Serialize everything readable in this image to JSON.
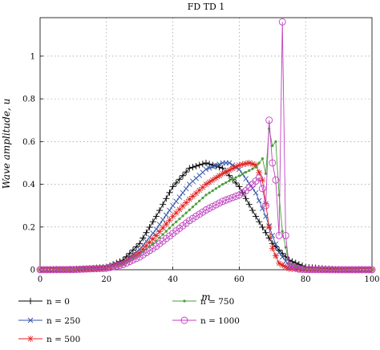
{
  "chart_data": {
    "type": "line",
    "title": "FD TD 1",
    "xlabel": "m",
    "ylabel": "Wave amplitude, u",
    "xlim": [
      0,
      100
    ],
    "ylim": [
      0,
      1.18
    ],
    "x_ticks": [
      "0",
      "20",
      "40",
      "60",
      "80",
      "100"
    ],
    "y_ticks": [
      "0",
      "0.2",
      "0.4",
      "0.6",
      "0.8",
      "1"
    ],
    "grid": "dotted",
    "legend_position": "bottom",
    "series": [
      {
        "name": "n = 0",
        "color": "#000000",
        "marker": "plus",
        "x": [
          0,
          10,
          20,
          25,
          30,
          35,
          40,
          45,
          50,
          55,
          60,
          65,
          70,
          75,
          80,
          90,
          100
        ],
        "y": [
          0,
          0.001,
          0.012,
          0.045,
          0.123,
          0.25,
          0.389,
          0.475,
          0.5,
          0.475,
          0.389,
          0.25,
          0.123,
          0.045,
          0.012,
          0.001,
          0
        ]
      },
      {
        "name": "n = 250",
        "color": "#3355aa",
        "marker": "x",
        "x": [
          0,
          10,
          20,
          25,
          30,
          35,
          40,
          45,
          50,
          55,
          57,
          60,
          65,
          68,
          70,
          72,
          75,
          80,
          90,
          100
        ],
        "y": [
          0,
          0.001,
          0.01,
          0.035,
          0.095,
          0.19,
          0.3,
          0.4,
          0.47,
          0.5,
          0.5,
          0.47,
          0.36,
          0.25,
          0.16,
          0.08,
          0.02,
          0.002,
          0,
          0
        ]
      },
      {
        "name": "n = 500",
        "color": "#e02020",
        "marker": "star",
        "x": [
          0,
          10,
          20,
          25,
          30,
          35,
          40,
          45,
          50,
          55,
          60,
          63,
          65,
          67,
          69,
          70,
          72,
          75,
          80,
          90,
          100
        ],
        "y": [
          0,
          0.001,
          0.009,
          0.03,
          0.08,
          0.16,
          0.25,
          0.33,
          0.4,
          0.45,
          0.49,
          0.5,
          0.49,
          0.42,
          0.2,
          0.1,
          0.03,
          0.005,
          0.001,
          0,
          0
        ]
      },
      {
        "name": "n = 750",
        "color": "#4a9e3a",
        "marker": "dot",
        "x": [
          0,
          10,
          20,
          25,
          30,
          35,
          40,
          45,
          50,
          55,
          60,
          65,
          67,
          68,
          69,
          70,
          71,
          72,
          73,
          75,
          80,
          90,
          100
        ],
        "y": [
          0,
          0.001,
          0.008,
          0.027,
          0.07,
          0.135,
          0.21,
          0.28,
          0.35,
          0.4,
          0.44,
          0.48,
          0.52,
          0.45,
          0.66,
          0.58,
          0.6,
          0.35,
          0.18,
          0.03,
          0.002,
          0,
          0
        ]
      },
      {
        "name": "n = 1000",
        "color": "#c040c0",
        "marker": "circle",
        "x": [
          0,
          10,
          20,
          25,
          30,
          35,
          40,
          45,
          50,
          55,
          60,
          62,
          64,
          66,
          67,
          68,
          69,
          70,
          71,
          72,
          73,
          74,
          75,
          78,
          80,
          90,
          100
        ],
        "y": [
          0,
          0.001,
          0.007,
          0.024,
          0.06,
          0.11,
          0.17,
          0.23,
          0.28,
          0.32,
          0.35,
          0.37,
          0.4,
          0.43,
          0.38,
          0.3,
          0.7,
          0.5,
          0.42,
          0.16,
          1.16,
          0.16,
          0.02,
          0.003,
          0.001,
          0,
          0
        ]
      }
    ]
  }
}
